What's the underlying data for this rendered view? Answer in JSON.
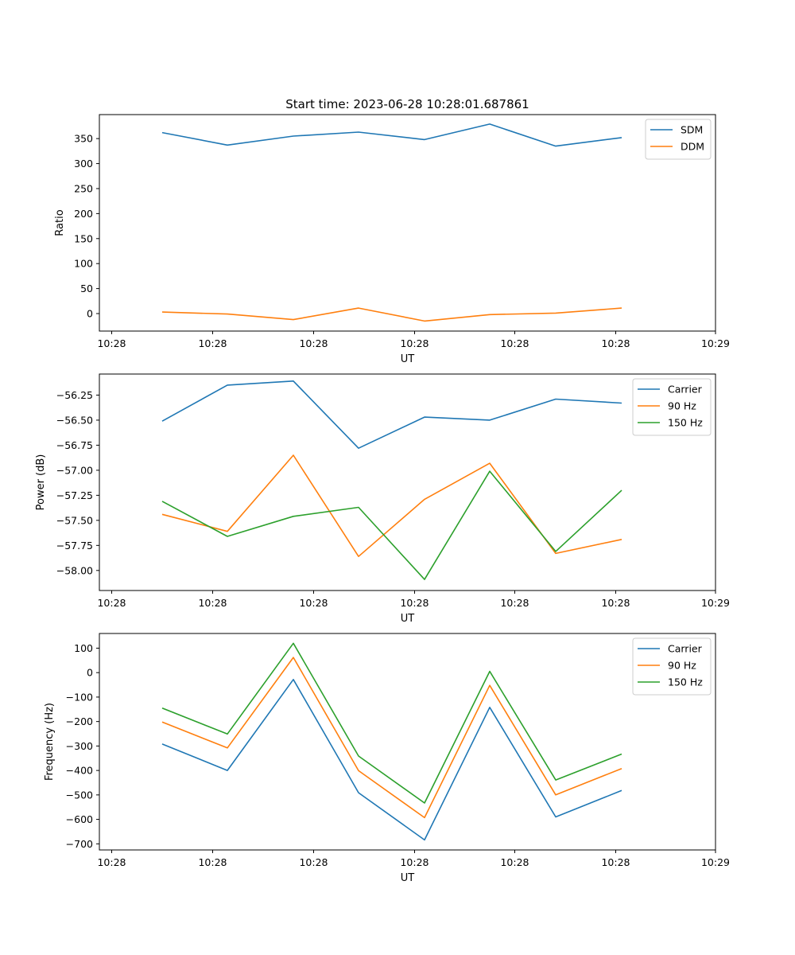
{
  "figure": {
    "title": "Start time: 2023-06-28 10:28:01.687861"
  },
  "chart_data": [
    {
      "type": "line",
      "xlabel": "UT",
      "ylabel": "Ratio",
      "x_ticks": [
        "10:28",
        "10:28",
        "10:28",
        "10:28",
        "10:28",
        "10:28",
        "10:29"
      ],
      "y_ticks": [
        0,
        50,
        100,
        150,
        200,
        250,
        300,
        350
      ],
      "y_tick_labels": [
        "0",
        "50",
        "100",
        "150",
        "200",
        "250",
        "300",
        "350"
      ],
      "ylim": [
        -35,
        398
      ],
      "grid": false,
      "legend": "top-right",
      "series": [
        {
          "name": "SDM",
          "color": "#1f77b4",
          "values": [
            362,
            337,
            355,
            363,
            348,
            379,
            335,
            352
          ]
        },
        {
          "name": "DDM",
          "color": "#ff7f0e",
          "values": [
            3,
            -1,
            -12,
            11,
            -15,
            -2,
            1,
            11
          ]
        }
      ]
    },
    {
      "type": "line",
      "xlabel": "UT",
      "ylabel": "Power (dB)",
      "x_ticks": [
        "10:28",
        "10:28",
        "10:28",
        "10:28",
        "10:28",
        "10:28",
        "10:29"
      ],
      "y_ticks": [
        -58.0,
        -57.75,
        -57.5,
        -57.25,
        -57.0,
        -56.75,
        -56.5,
        -56.25
      ],
      "y_tick_labels": [
        "−58.00",
        "−57.75",
        "−57.50",
        "−57.25",
        "−57.00",
        "−56.75",
        "−56.50",
        "−56.25"
      ],
      "ylim": [
        -58.2,
        -56.04
      ],
      "grid": false,
      "legend": "top-right",
      "series": [
        {
          "name": "Carrier",
          "color": "#1f77b4",
          "values": [
            -56.51,
            -56.15,
            -56.11,
            -56.78,
            -56.47,
            -56.5,
            -56.29,
            -56.33
          ]
        },
        {
          "name": "90 Hz",
          "color": "#ff7f0e",
          "values": [
            -57.44,
            -57.61,
            -56.85,
            -57.86,
            -57.29,
            -56.93,
            -57.83,
            -57.69
          ]
        },
        {
          "name": "150 Hz",
          "color": "#2ca02c",
          "values": [
            -57.31,
            -57.66,
            -57.46,
            -57.37,
            -58.09,
            -57.01,
            -57.81,
            -57.2
          ]
        }
      ]
    },
    {
      "type": "line",
      "xlabel": "UT",
      "ylabel": "Frequency (Hz)",
      "x_ticks": [
        "10:28",
        "10:28",
        "10:28",
        "10:28",
        "10:28",
        "10:28",
        "10:29"
      ],
      "y_ticks": [
        -700,
        -600,
        -500,
        -400,
        -300,
        -200,
        -100,
        0,
        100
      ],
      "y_tick_labels": [
        "−700",
        "−600",
        "−500",
        "−400",
        "−300",
        "−200",
        "−100",
        "0",
        "100"
      ],
      "ylim": [
        -725,
        160
      ],
      "grid": false,
      "legend": "top-right",
      "series": [
        {
          "name": "Carrier",
          "color": "#1f77b4",
          "values": [
            -292,
            -400,
            -28,
            -491,
            -684,
            -142,
            -590,
            -482
          ]
        },
        {
          "name": "90 Hz",
          "color": "#ff7f0e",
          "values": [
            -202,
            -308,
            62,
            -401,
            -593,
            -52,
            -500,
            -392
          ]
        },
        {
          "name": "150 Hz",
          "color": "#2ca02c",
          "values": [
            -145,
            -251,
            120,
            -341,
            -533,
            5,
            -439,
            -333
          ]
        }
      ]
    }
  ]
}
